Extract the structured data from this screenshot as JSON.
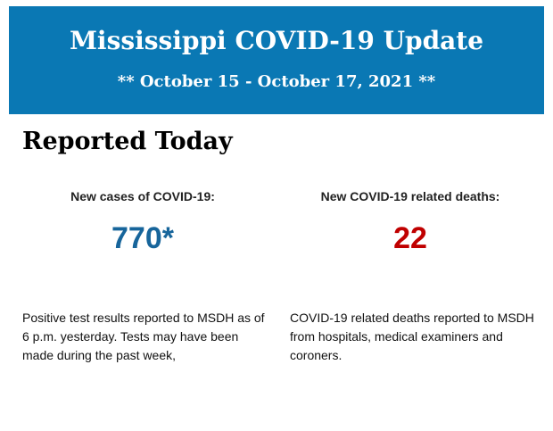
{
  "banner": {
    "title": "Mississippi COVID-19 Update",
    "dates": "** October 15 - October 17, 2021 **"
  },
  "section_title": "Reported Today",
  "cases": {
    "label": "New cases of COVID-19:",
    "value": "770*",
    "color": "#17659b",
    "description": "Positive test results reported to MSDH as of 6 p.m. yesterday. Tests may have been made during the past week,"
  },
  "deaths": {
    "label": "New COVID-19 related deaths:",
    "value": "22",
    "color": "#c00000",
    "description": "COVID-19 related deaths reported to MSDH from hospitals, medical examiners and coroners."
  }
}
